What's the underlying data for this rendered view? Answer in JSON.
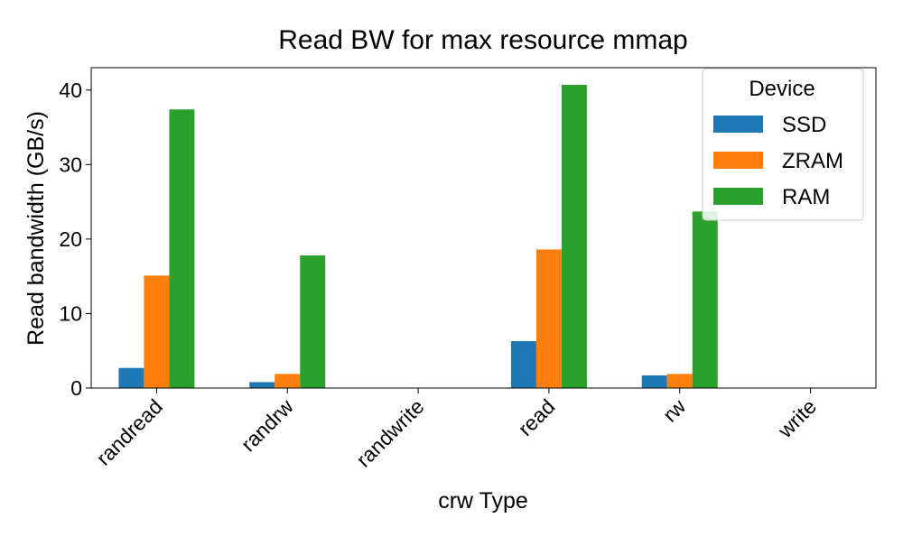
{
  "chart_data": {
    "type": "bar",
    "title": "Read BW for max resource mmap",
    "xlabel": "crw Type",
    "ylabel": "Read bandwidth (GB/s)",
    "categories": [
      "randread",
      "randrw",
      "randwrite",
      "read",
      "rw",
      "write"
    ],
    "series": [
      {
        "name": "SSD",
        "color": "#1f77b4",
        "values": [
          2.7,
          0.8,
          0,
          6.3,
          1.7,
          0
        ]
      },
      {
        "name": "ZRAM",
        "color": "#ff7f0e",
        "values": [
          15.1,
          1.9,
          0,
          18.6,
          1.9,
          0
        ]
      },
      {
        "name": "RAM",
        "color": "#2ca02c",
        "values": [
          37.4,
          17.8,
          0,
          40.7,
          23.7,
          0
        ]
      }
    ],
    "ylim": [
      0,
      43
    ],
    "yticks": [
      0,
      10,
      20,
      30,
      40
    ],
    "grid": false,
    "legend": {
      "title": "Device",
      "placement": "top-right"
    }
  }
}
